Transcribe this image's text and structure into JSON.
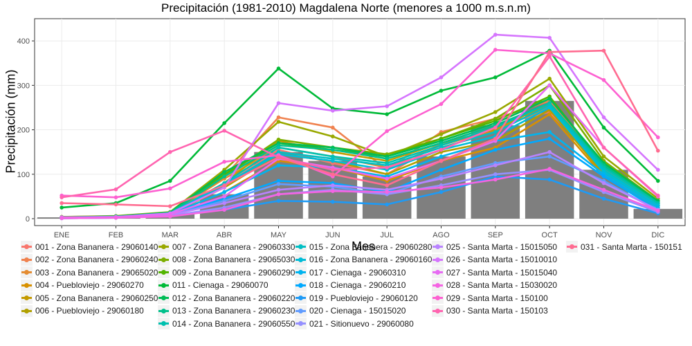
{
  "chart_data": {
    "type": "line+bar",
    "title": "Precipitación (1981-2010) Magdalena Norte (menores a 1000 m.s.n.m)",
    "xlabel": "Mes",
    "ylabel": "Precipitación (mm)",
    "categories": [
      "ENE",
      "FEB",
      "MAR",
      "ABR",
      "MAY",
      "JUN",
      "JUL",
      "AGO",
      "SEP",
      "OCT",
      "NOV",
      "DIC"
    ],
    "ylim": [
      0,
      450
    ],
    "yticks": [
      0,
      100,
      200,
      300,
      400
    ],
    "bar_color": "#7f7f7f",
    "bars": [
      3,
      4,
      12,
      55,
      150,
      130,
      95,
      140,
      210,
      265,
      110,
      22
    ],
    "series": [
      {
        "name": "001 - Zona Bananera - 29060140",
        "color": "#f8766d",
        "values": [
          3,
          4,
          12,
          75,
          155,
          125,
          100,
          170,
          210,
          240,
          115,
          30
        ]
      },
      {
        "name": "002 - Zona Bananera - 29060240",
        "color": "#f0824f",
        "values": [
          4,
          5,
          14,
          95,
          228,
          205,
          110,
          195,
          225,
          265,
          125,
          35
        ]
      },
      {
        "name": "003 - Zona Bananera - 29065020",
        "color": "#e48c32",
        "values": [
          3,
          5,
          13,
          90,
          160,
          140,
          115,
          165,
          200,
          250,
          110,
          30
        ]
      },
      {
        "name": "004 - Puebloviejo - 29060270",
        "color": "#d89000",
        "values": [
          2,
          4,
          10,
          60,
          130,
          115,
          85,
          130,
          160,
          235,
          95,
          25
        ]
      },
      {
        "name": "005 - Zona Bananera - 29060250",
        "color": "#c49a00",
        "values": [
          3,
          4,
          13,
          80,
          175,
          150,
          130,
          170,
          200,
          260,
          120,
          35
        ]
      },
      {
        "name": "006 - Puebloviejo - 29060180",
        "color": "#b0a000",
        "values": [
          2,
          3,
          10,
          70,
          145,
          130,
          100,
          150,
          175,
          245,
          100,
          30
        ]
      },
      {
        "name": "007 - Zona Bananera - 29060330",
        "color": "#99a800",
        "values": [
          4,
          6,
          15,
          110,
          218,
          185,
          140,
          190,
          240,
          315,
          140,
          45
        ]
      },
      {
        "name": "008 - Zona Bananera - 29065030",
        "color": "#7cae00",
        "values": [
          3,
          5,
          13,
          95,
          178,
          160,
          145,
          180,
          225,
          300,
          130,
          40
        ]
      },
      {
        "name": "009 - Zona Bananera - 29060290",
        "color": "#53b400",
        "values": [
          3,
          5,
          14,
          100,
          170,
          155,
          140,
          180,
          220,
          275,
          120,
          35
        ]
      },
      {
        "name": "011 - Cienaga - 29060070",
        "color": "#00ba38",
        "values": [
          25,
          35,
          85,
          215,
          338,
          248,
          235,
          288,
          318,
          378,
          205,
          85
        ]
      },
      {
        "name": "012 - Zona Bananera - 29060220",
        "color": "#00bc56",
        "values": [
          3,
          5,
          14,
          105,
          170,
          160,
          140,
          175,
          215,
          270,
          125,
          40
        ]
      },
      {
        "name": "013 - Zona Bananera - 29060230",
        "color": "#00c08b",
        "values": [
          3,
          5,
          13,
          95,
          165,
          155,
          135,
          170,
          210,
          260,
          120,
          35
        ]
      },
      {
        "name": "014 - Zona Bananera - 29060550",
        "color": "#00c0af",
        "values": [
          2,
          4,
          12,
          80,
          160,
          140,
          125,
          165,
          205,
          260,
          115,
          35
        ]
      },
      {
        "name": "015 - Zona Bananera - 29060280",
        "color": "#00bfc4",
        "values": [
          2,
          4,
          11,
          75,
          150,
          135,
          120,
          160,
          195,
          255,
          110,
          30
        ]
      },
      {
        "name": "016 - Zona Bananera - 29060160",
        "color": "#00bcd8",
        "values": [
          3,
          4,
          12,
          78,
          145,
          130,
          110,
          155,
          185,
          250,
          105,
          30
        ]
      },
      {
        "name": "017 - Cienaga - 29060310",
        "color": "#00b4ef",
        "values": [
          2,
          3,
          10,
          60,
          120,
          115,
          95,
          140,
          175,
          195,
          100,
          25
        ]
      },
      {
        "name": "018 - Cienaga - 29060210",
        "color": "#00a9ff",
        "values": [
          2,
          3,
          9,
          45,
          85,
          80,
          60,
          110,
          155,
          180,
          95,
          20
        ]
      },
      {
        "name": "019 - Puebloviejo - 29060120",
        "color": "#1e9af5",
        "values": [
          1,
          2,
          6,
          20,
          40,
          38,
          32,
          60,
          95,
          88,
          45,
          12
        ]
      },
      {
        "name": "020 - Cienaga - 15015020",
        "color": "#619cff",
        "values": [
          2,
          3,
          8,
          40,
          78,
          72,
          55,
          95,
          125,
          140,
          85,
          18
        ]
      },
      {
        "name": "021 - Sitionuevo - 29060080",
        "color": "#9590ff",
        "values": [
          1,
          2,
          6,
          25,
          55,
          65,
          55,
          75,
          100,
          110,
          60,
          15
        ]
      },
      {
        "name": "025 - Santa Marta - 15015050",
        "color": "#b983ff",
        "values": [
          2,
          3,
          8,
          35,
          65,
          75,
          65,
          90,
          120,
          150,
          80,
          20
        ]
      },
      {
        "name": "026 - Santa Marta - 15010010",
        "color": "#d575fe",
        "values": [
          3,
          4,
          12,
          70,
          260,
          243,
          253,
          318,
          414,
          407,
          228,
          110
        ]
      },
      {
        "name": "027 - Santa Marta - 15015040",
        "color": "#e76bf3",
        "values": [
          2,
          3,
          10,
          50,
          135,
          115,
          90,
          130,
          175,
          300,
          160,
          50
        ]
      },
      {
        "name": "028 - Santa Marta - 15030020",
        "color": "#f564e3",
        "values": [
          1,
          2,
          5,
          20,
          55,
          62,
          60,
          70,
          88,
          112,
          65,
          18
        ]
      },
      {
        "name": "029 - Santa Marta - 150100",
        "color": "#fd61d1",
        "values": [
          52,
          48,
          68,
          128,
          143,
          95,
          197,
          258,
          380,
          372,
          312,
          183
        ]
      },
      {
        "name": "030 - Santa Marta - 150103",
        "color": "#ff64b0",
        "values": [
          48,
          66,
          150,
          198,
          138,
          110,
          115,
          155,
          205,
          365,
          160,
          52
        ]
      },
      {
        "name": "031 - Santa Marta - 150151",
        "color": "#ff6c91",
        "values": [
          35,
          32,
          28,
          75,
          138,
          100,
          75,
          130,
          180,
          375,
          378,
          153
        ]
      }
    ]
  }
}
